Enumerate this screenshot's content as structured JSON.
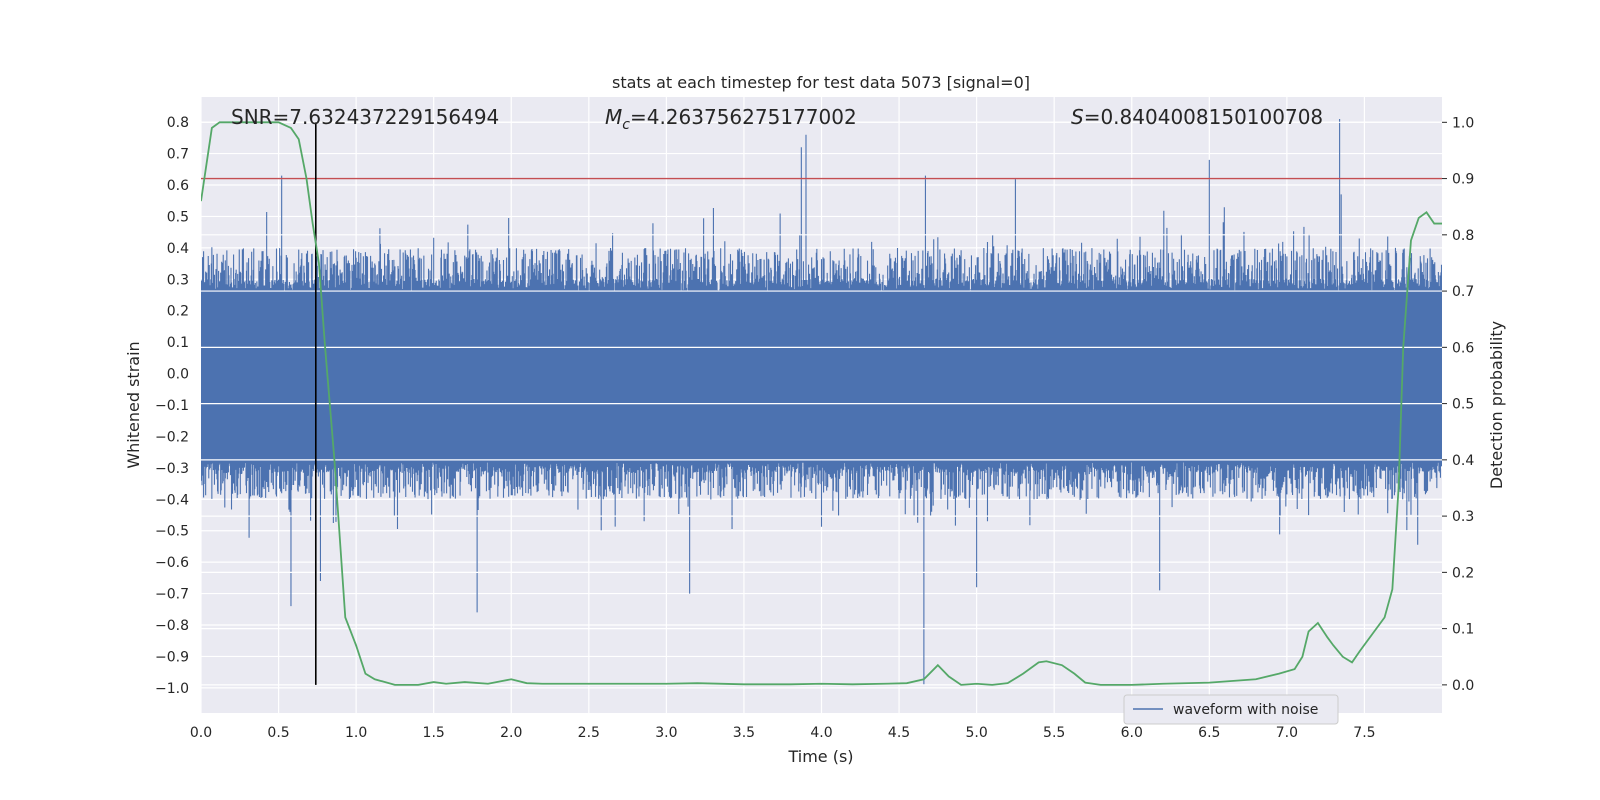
{
  "chart_data": {
    "type": "line",
    "title": "stats at each timestep for test data 5073 [signal=0]",
    "xlabel": "Time (s)",
    "ylabel_left": "Whitened strain",
    "ylabel_right": "Detection probability",
    "xlim": [
      0.0,
      8.0
    ],
    "ylim_left": [
      -1.08,
      0.88
    ],
    "ylim_right": [
      -0.05,
      1.045
    ],
    "grid": true,
    "legend": {
      "placement": "lower-right",
      "entries": [
        "waveform with noise"
      ]
    },
    "x_ticks": [
      "0.0",
      "0.5",
      "1.0",
      "1.5",
      "2.0",
      "2.5",
      "3.0",
      "3.5",
      "4.0",
      "4.5",
      "5.0",
      "5.5",
      "6.0",
      "6.5",
      "7.0",
      "7.5"
    ],
    "x_tick_values": [
      0.0,
      0.5,
      1.0,
      1.5,
      2.0,
      2.5,
      3.0,
      3.5,
      4.0,
      4.5,
      5.0,
      5.5,
      6.0,
      6.5,
      7.0,
      7.5
    ],
    "y_left_ticks": [
      "0.8",
      "0.7",
      "0.6",
      "0.5",
      "0.4",
      "0.3",
      "0.2",
      "0.1",
      "0.0",
      "−0.1",
      "−0.2",
      "−0.3",
      "−0.4",
      "−0.5",
      "−0.6",
      "−0.7",
      "−0.8",
      "−0.9",
      "−1.0"
    ],
    "y_left_tick_values": [
      0.8,
      0.7,
      0.6,
      0.5,
      0.4,
      0.3,
      0.2,
      0.1,
      0.0,
      -0.1,
      -0.2,
      -0.3,
      -0.4,
      -0.5,
      -0.6,
      -0.7,
      -0.8,
      -0.9,
      -1.0
    ],
    "y_right_ticks": [
      "1.0",
      "0.9",
      "0.8",
      "0.7",
      "0.6",
      "0.5",
      "0.4",
      "0.3",
      "0.2",
      "0.1",
      "0.0"
    ],
    "y_right_tick_values": [
      1.0,
      0.9,
      0.8,
      0.7,
      0.6,
      0.5,
      0.4,
      0.3,
      0.2,
      0.1,
      0.0
    ],
    "annotations": {
      "snr": "SNR=7.632437229156494",
      "mc_symbol": "M",
      "mc_sub": "c",
      "mc_value": "=4.263756275177002",
      "s_symbol": "S",
      "s_value": "=0.8404008150100708"
    },
    "threshold_probability": 0.9,
    "marker_time": 0.74,
    "series": [
      {
        "name": "waveform with noise",
        "axis": "left",
        "color": "#4c72b0",
        "style": "noise",
        "envelope": {
          "typical_max": 0.4,
          "typical_min": -0.4,
          "dense_band": [
            -0.28,
            0.26
          ]
        },
        "spikes": [
          {
            "x": 0.52,
            "y": 0.63
          },
          {
            "x": 0.58,
            "y": -0.74
          },
          {
            "x": 0.77,
            "y": -0.66
          },
          {
            "x": 1.78,
            "y": -0.76
          },
          {
            "x": 3.15,
            "y": -0.7
          },
          {
            "x": 3.87,
            "y": 0.72
          },
          {
            "x": 3.9,
            "y": 0.76
          },
          {
            "x": 4.66,
            "y": -0.99
          },
          {
            "x": 4.67,
            "y": 0.63
          },
          {
            "x": 5.25,
            "y": 0.62
          },
          {
            "x": 6.5,
            "y": 0.68
          },
          {
            "x": 7.34,
            "y": 0.81
          },
          {
            "x": 7.35,
            "y": 0.57
          },
          {
            "x": 5.0,
            "y": -0.68
          },
          {
            "x": 6.18,
            "y": -0.69
          }
        ]
      },
      {
        "name": "",
        "axis": "right",
        "color": "#55a868",
        "x": [
          0.0,
          0.07,
          0.12,
          0.2,
          0.3,
          0.4,
          0.5,
          0.58,
          0.63,
          0.68,
          0.72,
          0.76,
          0.8,
          0.86,
          0.93,
          1.0,
          1.06,
          1.12,
          1.25,
          1.4,
          1.5,
          1.58,
          1.7,
          1.85,
          2.0,
          2.1,
          2.2,
          2.5,
          3.0,
          3.2,
          3.5,
          3.8,
          4.0,
          4.2,
          4.4,
          4.55,
          4.66,
          4.75,
          4.82,
          4.9,
          5.0,
          5.1,
          5.2,
          5.3,
          5.4,
          5.45,
          5.55,
          5.63,
          5.7,
          5.8,
          6.0,
          6.2,
          6.5,
          6.8,
          6.95,
          7.05,
          7.1,
          7.14,
          7.2,
          7.26,
          7.3,
          7.36,
          7.42,
          7.47,
          7.55,
          7.63,
          7.68,
          7.72,
          7.75,
          7.8,
          7.85,
          7.9,
          7.95,
          8.0
        ],
        "y": [
          0.86,
          0.99,
          1.0,
          1.0,
          1.0,
          1.0,
          1.0,
          0.99,
          0.97,
          0.9,
          0.82,
          0.75,
          0.6,
          0.4,
          0.12,
          0.07,
          0.02,
          0.01,
          0.0,
          0.0,
          0.005,
          0.002,
          0.005,
          0.002,
          0.01,
          0.003,
          0.002,
          0.002,
          0.002,
          0.003,
          0.001,
          0.001,
          0.002,
          0.001,
          0.002,
          0.003,
          0.01,
          0.035,
          0.015,
          0.0,
          0.002,
          0.0,
          0.003,
          0.02,
          0.04,
          0.042,
          0.035,
          0.02,
          0.004,
          0.0,
          0.0,
          0.002,
          0.004,
          0.01,
          0.02,
          0.028,
          0.05,
          0.095,
          0.11,
          0.085,
          0.07,
          0.05,
          0.04,
          0.06,
          0.09,
          0.12,
          0.17,
          0.35,
          0.6,
          0.79,
          0.83,
          0.84,
          0.82,
          0.82
        ]
      }
    ]
  }
}
